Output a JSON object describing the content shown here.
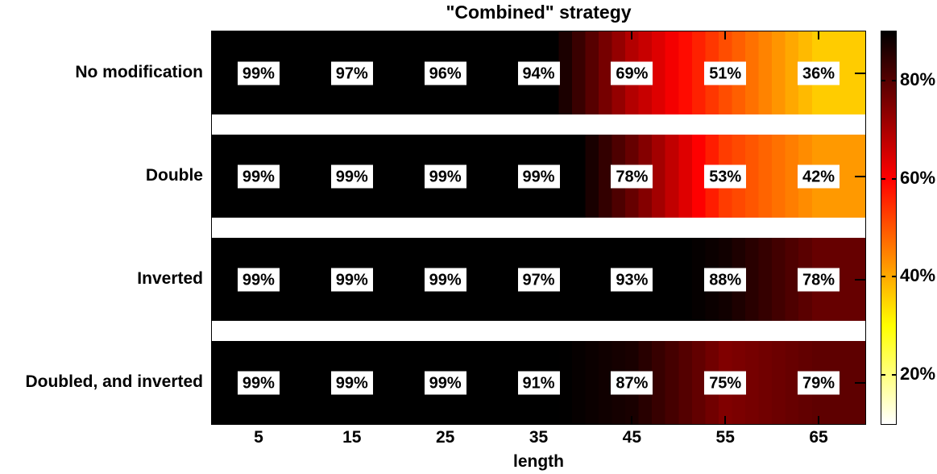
{
  "title": "\"Combined\" strategy",
  "xlabel": "length",
  "chart_data": {
    "type": "heatmap",
    "title": "\"Combined\" strategy",
    "xlabel": "length",
    "ylabel": "",
    "x_ticks": [
      "5",
      "15",
      "25",
      "35",
      "45",
      "55",
      "65"
    ],
    "x_tick_values": [
      5,
      15,
      25,
      35,
      45,
      55,
      65
    ],
    "rows": [
      {
        "label": "No modification",
        "values": [
          99,
          97,
          96,
          94,
          69,
          51,
          36
        ]
      },
      {
        "label": "Double",
        "values": [
          99,
          99,
          99,
          99,
          78,
          53,
          42
        ]
      },
      {
        "label": "Inverted",
        "values": [
          99,
          99,
          99,
          97,
          93,
          88,
          78
        ]
      },
      {
        "label": "Doubled, and inverted",
        "values": [
          99,
          99,
          99,
          91,
          87,
          75,
          79
        ]
      }
    ],
    "value_suffix": "%",
    "colormap": "hot-reversed",
    "color_domain": [
      10,
      90
    ],
    "colormap_stops": {
      "high": "#000000",
      "mid": "#ff0000",
      "low_mid": "#ffff00",
      "low": "#ffffff"
    },
    "colorbar": {
      "position": "right",
      "tick_labels": [
        "80%",
        "60%",
        "40%",
        "20%"
      ],
      "tick_values": [
        80,
        60,
        40,
        20
      ]
    },
    "grid": false,
    "row_gap_color": "#ffffff",
    "label_box_background": "#ffffff",
    "text_color": "#000000"
  }
}
